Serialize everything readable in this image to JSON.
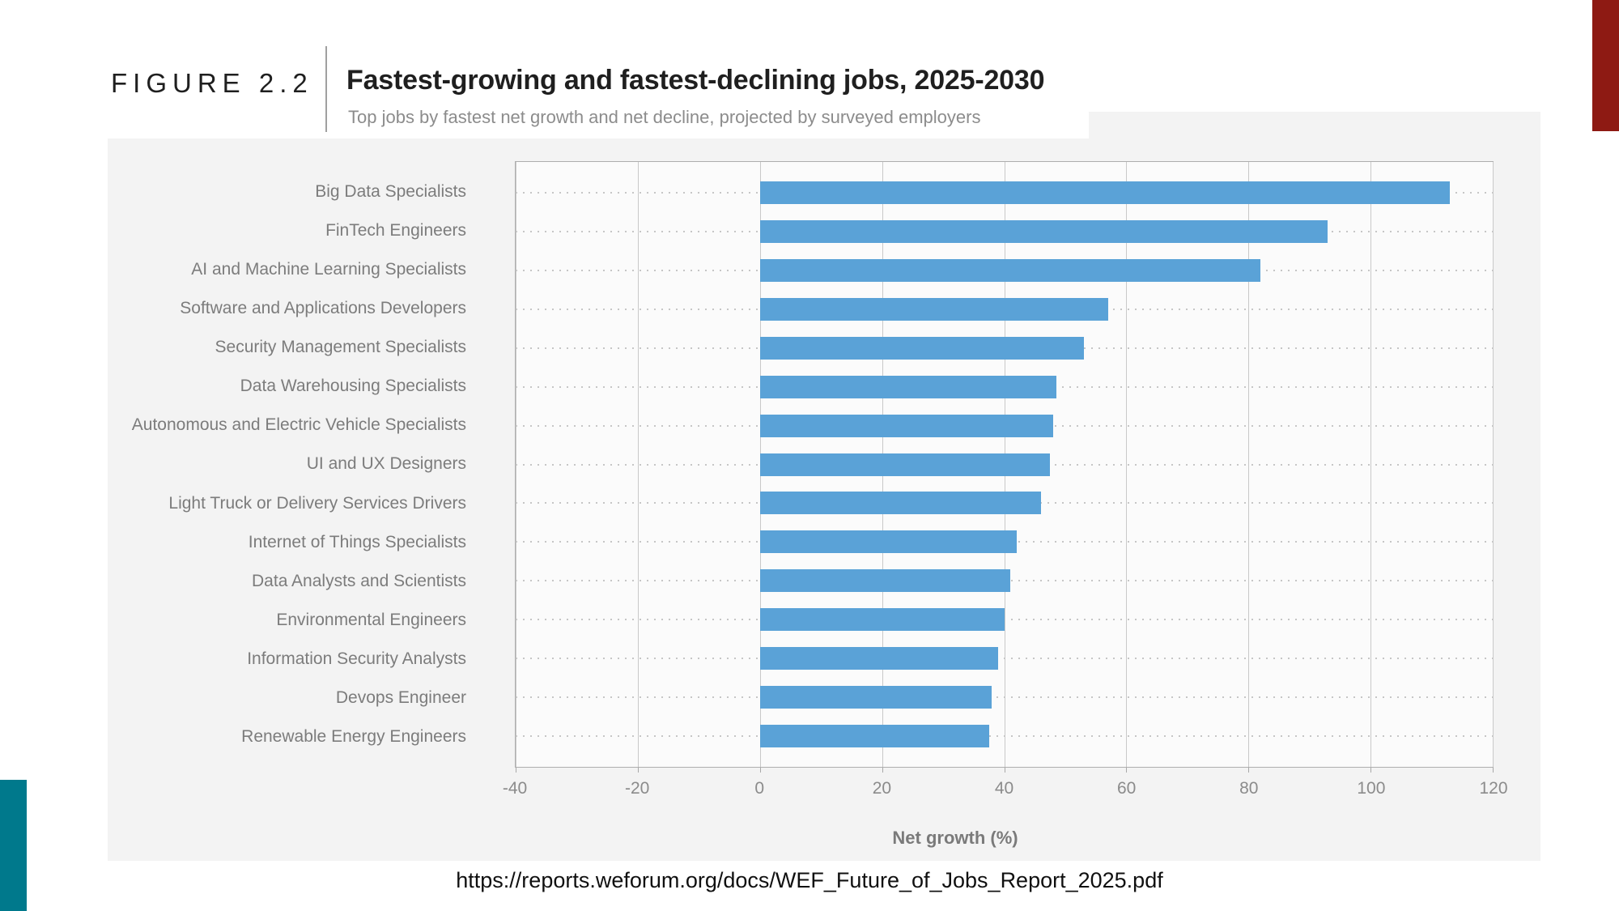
{
  "figure": {
    "label": "FIGURE 2.2",
    "title": "Fastest-growing and fastest-declining jobs, 2025-2030",
    "subtitle": "Top jobs by fastest net growth and net decline, projected by surveyed employers"
  },
  "chart_data": {
    "type": "bar",
    "orientation": "horizontal",
    "categories": [
      "Big Data Specialists",
      "FinTech Engineers",
      "AI and Machine Learning Specialists",
      "Software and Applications Developers",
      "Security Management Specialists",
      "Data Warehousing Specialists",
      "Autonomous and Electric Vehicle Specialists",
      "UI and UX Designers",
      "Light Truck or Delivery Services Drivers",
      "Internet of Things Specialists",
      "Data Analysts and Scientists",
      "Environmental Engineers",
      "Information Security Analysts",
      "Devops Engineer",
      "Renewable Energy Engineers"
    ],
    "values": [
      113,
      93,
      82,
      57,
      53,
      48.5,
      48,
      47.5,
      46,
      42,
      41,
      40,
      39,
      38,
      37.5
    ],
    "xlabel": "Net growth (%)",
    "xlim": [
      -40,
      120
    ],
    "xticks": [
      -40,
      -20,
      0,
      20,
      40,
      60,
      80,
      100,
      120
    ],
    "grid": "vertical-solid, horizontal-dotted-row-guides",
    "legend": "none",
    "bar_color": "#5aa2d7"
  },
  "source_url": "https://reports.weforum.org/docs/WEF_Future_of_Jobs_Report_2025.pdf",
  "colors": {
    "accent_red": "#8e1a13",
    "accent_teal": "#00798c",
    "panel_bg": "#f3f3f3",
    "plot_bg": "#fbfbfb",
    "gridline": "#c9c9c9",
    "bar_blue": "#5aa2d7",
    "title_text": "#1f1f1f",
    "muted_text": "#8c8c8c"
  }
}
